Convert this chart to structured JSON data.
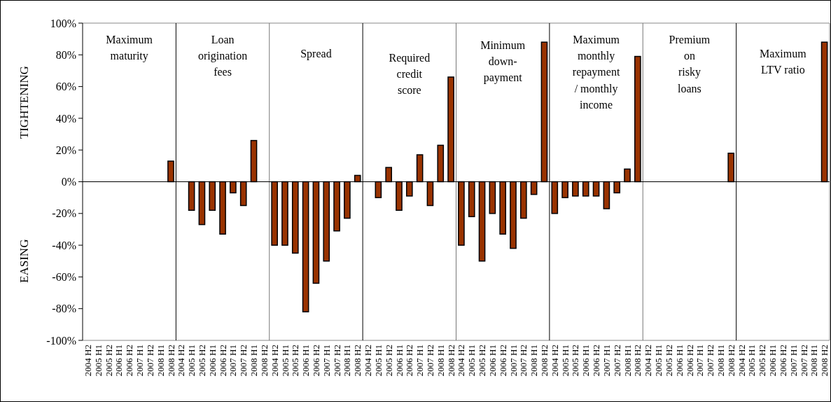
{
  "chart_data": {
    "type": "bar",
    "categories": [
      "2004 H2",
      "2005 H1",
      "2005 H2",
      "2006 H1",
      "2006 H2",
      "2007 H1",
      "2007 H2",
      "2008 H1",
      "2008 H2",
      "2004 H2",
      "2005 H1",
      "2005 H2",
      "2006 H1",
      "2006 H2",
      "2007 H1",
      "2007 H2",
      "2008 H1",
      "2008 H2",
      "2004 H2",
      "2005 H1",
      "2005 H2",
      "2006 H1",
      "2006 H2",
      "2007 H1",
      "2007 H2",
      "2008 H1",
      "2008 H2",
      "2004 H2",
      "2005 H1",
      "2005 H2",
      "2006 H1",
      "2006 H2",
      "2007 H1",
      "2007 H2",
      "2008 H1",
      "2008 H2",
      "2004 H2",
      "2005 H1",
      "2005 H2",
      "2006 H1",
      "2006 H2",
      "2007 H1",
      "2007 H2",
      "2008 H1",
      "2008 H2",
      "2004 H2",
      "2005 H1",
      "2005 H2",
      "2006 H1",
      "2006 H2",
      "2007 H1",
      "2007 H2",
      "2008 H1",
      "2008 H2",
      "2004 H2",
      "2005 H1",
      "2005 H2",
      "2006 H1",
      "2006 H2",
      "2007 H1",
      "2007 H2",
      "2008 H1",
      "2008 H2",
      "2004 H2",
      "2005 H1",
      "2005 H2",
      "2006 H1",
      "2006 H2",
      "2007 H1",
      "2007 H2",
      "2008 H1",
      "2008 H2"
    ],
    "values": [
      null,
      null,
      null,
      null,
      null,
      null,
      null,
      null,
      0.13,
      null,
      -0.18,
      -0.27,
      -0.18,
      -0.33,
      -0.07,
      -0.15,
      0.26,
      null,
      -0.4,
      -0.4,
      -0.45,
      -0.82,
      -0.64,
      -0.5,
      -0.31,
      -0.23,
      0.04,
      null,
      -0.1,
      0.09,
      -0.18,
      -0.09,
      0.17,
      -0.15,
      0.23,
      0.66,
      -0.4,
      -0.22,
      -0.5,
      -0.2,
      -0.33,
      -0.42,
      -0.23,
      -0.08,
      0.88,
      -0.2,
      -0.1,
      -0.09,
      -0.09,
      -0.09,
      -0.17,
      -0.07,
      0.08,
      0.79,
      null,
      null,
      null,
      null,
      null,
      null,
      null,
      null,
      0.18,
      null,
      null,
      null,
      null,
      null,
      null,
      null,
      null,
      0.88
    ],
    "color": "#993300",
    "ylim": [
      -1,
      1
    ],
    "yticks": [
      {
        "value": -1,
        "label": "-100%"
      },
      {
        "value": -0.8,
        "label": "-80%"
      },
      {
        "value": -0.6,
        "label": "-60%"
      },
      {
        "value": -0.4,
        "label": "-40%"
      },
      {
        "value": -0.2,
        "label": "-20%"
      },
      {
        "value": 0,
        "label": "0%"
      },
      {
        "value": 0.2,
        "label": "20%"
      },
      {
        "value": 0.4,
        "label": "40%"
      },
      {
        "value": 0.6,
        "label": "60%"
      },
      {
        "value": 0.8,
        "label": "80%"
      },
      {
        "value": 1,
        "label": "100%"
      }
    ],
    "annotations": [
      "Maximum\nmaturity",
      "Loan\norigination\nfees",
      "Spread",
      "Required\ncredit\nscore",
      "Minimum\ndown-\npayment",
      "Maximum\nmonthly\nrepayment\n/ monthly\nincome",
      "Premium\non\nrisky\nloans",
      "Maximum\nLTV ratio",
      "TIGHTENING",
      "EASING"
    ]
  }
}
